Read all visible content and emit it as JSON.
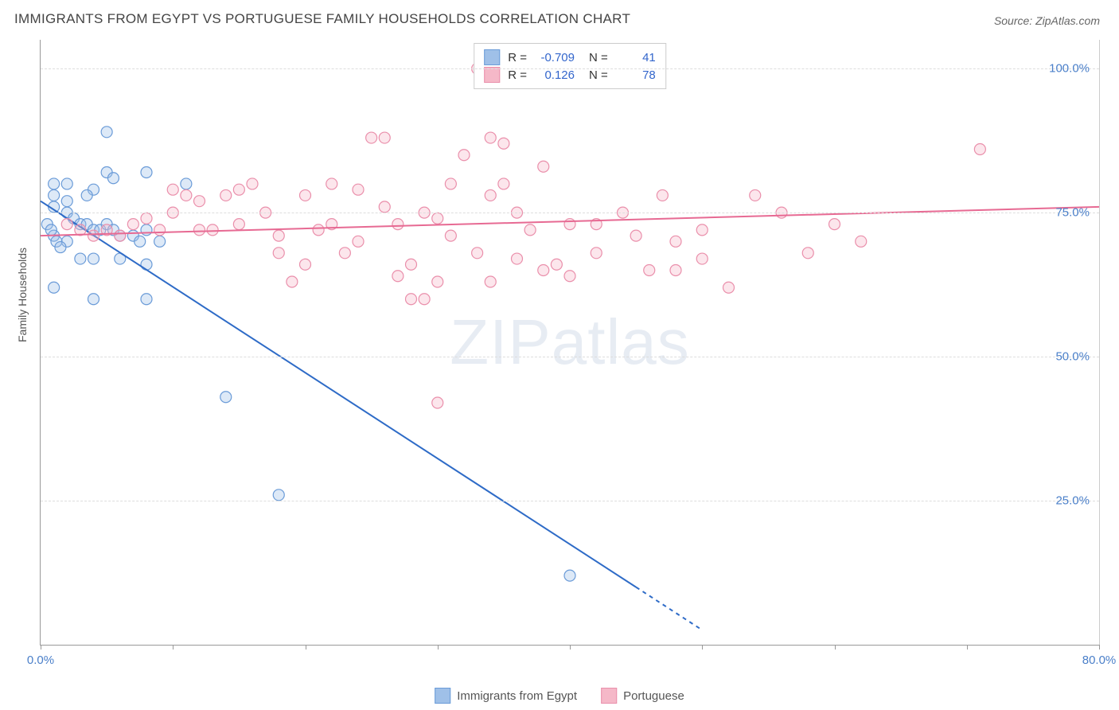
{
  "title": "IMMIGRANTS FROM EGYPT VS PORTUGUESE FAMILY HOUSEHOLDS CORRELATION CHART",
  "source_label": "Source: ZipAtlas.com",
  "watermark": "ZIPatlas",
  "ylabel": "Family Households",
  "plot": {
    "type": "scatter",
    "background_color": "#ffffff",
    "grid_color": "#dddddd",
    "axis_color": "#999999",
    "xlim": [
      0,
      80
    ],
    "ylim": [
      0,
      105
    ],
    "xtick_positions": [
      0,
      10,
      20,
      30,
      40,
      50,
      60,
      70,
      80
    ],
    "xtick_labels_shown": {
      "0": "0.0%",
      "80": "80.0%"
    },
    "ytick_positions": [
      25,
      50,
      75,
      100
    ],
    "ytick_labels": {
      "25": "25.0%",
      "50": "50.0%",
      "75": "75.0%",
      "100": "100.0%"
    },
    "marker_radius": 7,
    "marker_fill_opacity": 0.35,
    "marker_stroke_width": 1.2,
    "trend_line_width": 2,
    "label_fontsize": 15,
    "title_fontsize": 17,
    "tick_label_color": "#4a7fc9"
  },
  "series": [
    {
      "key": "egypt",
      "name": "Immigrants from Egypt",
      "color_fill": "#9fc0e8",
      "color_stroke": "#6a9bd8",
      "line_color": "#2e6bc7",
      "R": "-0.709",
      "N": "41",
      "trend": {
        "x1": 0,
        "y1": 77,
        "x2": 45,
        "y2": 10,
        "dash_extend_to_x": 50
      },
      "points": [
        [
          5,
          89
        ],
        [
          1,
          80
        ],
        [
          2,
          80
        ],
        [
          5,
          82
        ],
        [
          5.5,
          81
        ],
        [
          8,
          82
        ],
        [
          11,
          80
        ],
        [
          4,
          79
        ],
        [
          1,
          76
        ],
        [
          2,
          75
        ],
        [
          2.5,
          74
        ],
        [
          3,
          73
        ],
        [
          3.5,
          73
        ],
        [
          4,
          72
        ],
        [
          4.5,
          72
        ],
        [
          5,
          73
        ],
        [
          5.5,
          72
        ],
        [
          6,
          71
        ],
        [
          7,
          71
        ],
        [
          7.5,
          70
        ],
        [
          8,
          72
        ],
        [
          9,
          70
        ],
        [
          1,
          71
        ],
        [
          2,
          70
        ],
        [
          0.5,
          73
        ],
        [
          0.8,
          72
        ],
        [
          1.2,
          70
        ],
        [
          1.5,
          69
        ],
        [
          3,
          67
        ],
        [
          4,
          67
        ],
        [
          6,
          67
        ],
        [
          8,
          66
        ],
        [
          4,
          60
        ],
        [
          8,
          60
        ],
        [
          1,
          62
        ],
        [
          14,
          43
        ],
        [
          18,
          26
        ],
        [
          1,
          78
        ],
        [
          2,
          77
        ],
        [
          3.5,
          78
        ],
        [
          40,
          12
        ]
      ]
    },
    {
      "key": "portuguese",
      "name": "Portuguese",
      "color_fill": "#f5b8c8",
      "color_stroke": "#ea8fab",
      "line_color": "#e76a93",
      "R": "0.126",
      "N": "78",
      "trend": {
        "x1": 0,
        "y1": 71,
        "x2": 80,
        "y2": 76
      },
      "points": [
        [
          2,
          73
        ],
        [
          3,
          72
        ],
        [
          4,
          71
        ],
        [
          5,
          72
        ],
        [
          6,
          71
        ],
        [
          7,
          73
        ],
        [
          8,
          74
        ],
        [
          9,
          72
        ],
        [
          10,
          79
        ],
        [
          11,
          78
        ],
        [
          12,
          77
        ],
        [
          13,
          72
        ],
        [
          14,
          78
        ],
        [
          15,
          73
        ],
        [
          16,
          80
        ],
        [
          17,
          75
        ],
        [
          18,
          71
        ],
        [
          19,
          63
        ],
        [
          20,
          78
        ],
        [
          21,
          72
        ],
        [
          22,
          80
        ],
        [
          23,
          68
        ],
        [
          24,
          70
        ],
        [
          25,
          88
        ],
        [
          26,
          88
        ],
        [
          27,
          73
        ],
        [
          28,
          66
        ],
        [
          29,
          60
        ],
        [
          30,
          63
        ],
        [
          30,
          42
        ],
        [
          31,
          71
        ],
        [
          32,
          85
        ],
        [
          33,
          68
        ],
        [
          34,
          78
        ],
        [
          35,
          80
        ],
        [
          36,
          75
        ],
        [
          37,
          72
        ],
        [
          38,
          83
        ],
        [
          39,
          66
        ],
        [
          40,
          73
        ],
        [
          33,
          100
        ],
        [
          36,
          100
        ],
        [
          42,
          68
        ],
        [
          44,
          75
        ],
        [
          46,
          65
        ],
        [
          48,
          70
        ],
        [
          50,
          67
        ],
        [
          52,
          62
        ],
        [
          54,
          78
        ],
        [
          56,
          75
        ],
        [
          58,
          68
        ],
        [
          60,
          73
        ],
        [
          62,
          70
        ],
        [
          35,
          87
        ],
        [
          38,
          65
        ],
        [
          40,
          64
        ],
        [
          28,
          60
        ],
        [
          20,
          66
        ],
        [
          15,
          79
        ],
        [
          10,
          75
        ],
        [
          48,
          65
        ],
        [
          50,
          72
        ],
        [
          30,
          74
        ],
        [
          34,
          63
        ],
        [
          42,
          73
        ],
        [
          36,
          67
        ],
        [
          26,
          76
        ],
        [
          24,
          79
        ],
        [
          22,
          73
        ],
        [
          27,
          64
        ],
        [
          31,
          80
        ],
        [
          29,
          75
        ],
        [
          45,
          71
        ],
        [
          47,
          78
        ],
        [
          18,
          68
        ],
        [
          12,
          72
        ],
        [
          71,
          86
        ],
        [
          34,
          88
        ]
      ]
    }
  ],
  "legend_top": {
    "r_label": "R =",
    "n_label": "N ="
  },
  "legend_bottom": {
    "items": [
      "Immigrants from Egypt",
      "Portuguese"
    ]
  }
}
